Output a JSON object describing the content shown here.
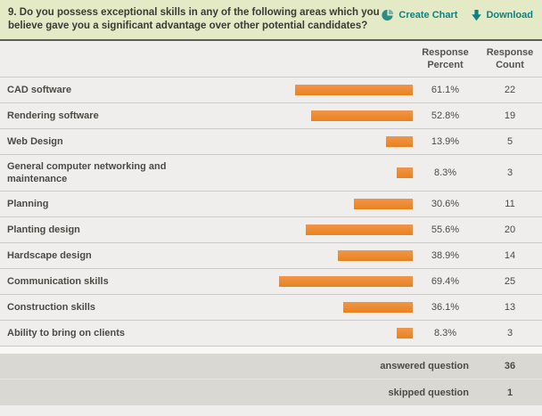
{
  "question": {
    "text": "9. Do you possess exceptional skills in any of the following areas which you believe gave you a significant advantage over other potential candidates?",
    "actions": {
      "create_chart": "Create Chart",
      "download": "Download"
    }
  },
  "columns": {
    "percent_header": "Response Percent",
    "count_header": "Response Count"
  },
  "table": {
    "rows": [
      {
        "label": "CAD software",
        "percent": "61.1%",
        "percent_value": 61.1,
        "count": "22"
      },
      {
        "label": "Rendering software",
        "percent": "52.8%",
        "percent_value": 52.8,
        "count": "19"
      },
      {
        "label": "Web Design",
        "percent": "13.9%",
        "percent_value": 13.9,
        "count": "5"
      },
      {
        "label": "General computer networking and maintenance",
        "percent": "8.3%",
        "percent_value": 8.3,
        "count": "3"
      },
      {
        "label": "Planning",
        "percent": "30.6%",
        "percent_value": 30.6,
        "count": "11"
      },
      {
        "label": "Planting design",
        "percent": "55.6%",
        "percent_value": 55.6,
        "count": "20"
      },
      {
        "label": "Hardscape design",
        "percent": "38.9%",
        "percent_value": 38.9,
        "count": "14"
      },
      {
        "label": "Communication skills",
        "percent": "69.4%",
        "percent_value": 69.4,
        "count": "25"
      },
      {
        "label": "Construction skills",
        "percent": "36.1%",
        "percent_value": 36.1,
        "count": "13"
      },
      {
        "label": "Ability to bring on clients",
        "percent": "8.3%",
        "percent_value": 8.3,
        "count": "3"
      }
    ],
    "footer": [
      {
        "label": "answered question",
        "value": "36"
      },
      {
        "label": "skipped question",
        "value": "1"
      }
    ]
  },
  "colors": {
    "bar_orange": "#EC8A31",
    "link_teal": "#0F8181",
    "header_green": "#E4EAC6",
    "row_gray": "#EFEEEC",
    "footer_gray": "#D9D8D3"
  },
  "chart_data": {
    "type": "bar",
    "orientation": "horizontal",
    "title": "9. Do you possess exceptional skills in any of the following areas which you believe gave you a significant advantage over other potential candidates?",
    "categories": [
      "CAD software",
      "Rendering software",
      "Web Design",
      "General computer networking and maintenance",
      "Planning",
      "Planting design",
      "Hardscape design",
      "Communication skills",
      "Construction skills",
      "Ability to bring on clients"
    ],
    "series": [
      {
        "name": "Response Percent",
        "values": [
          61.1,
          52.8,
          13.9,
          8.3,
          30.6,
          55.6,
          38.9,
          69.4,
          36.1,
          8.3
        ]
      },
      {
        "name": "Response Count",
        "values": [
          22,
          19,
          5,
          3,
          11,
          20,
          14,
          25,
          13,
          3
        ]
      }
    ],
    "xlim": [
      0,
      100
    ],
    "answered_question": 36,
    "skipped_question": 1
  }
}
